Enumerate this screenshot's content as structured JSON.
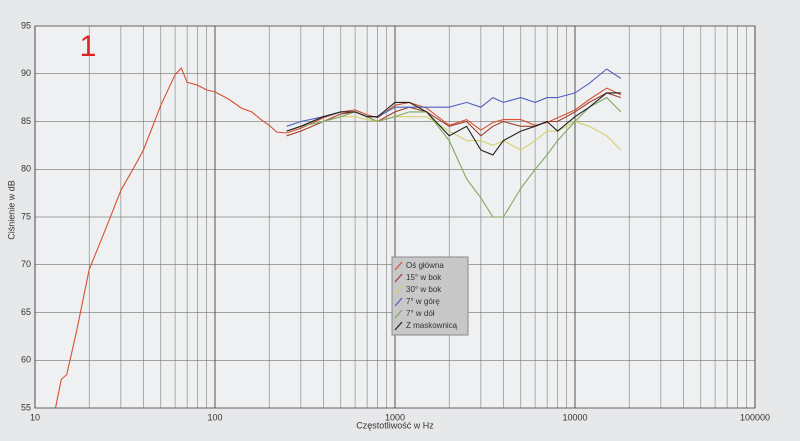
{
  "chart_data": {
    "type": "line",
    "annotation": "1",
    "xlabel": "Częstotliwość w Hz",
    "ylabel": "Ciśnienie w dB",
    "xscale": "log",
    "grid": true,
    "legend": "center",
    "xlim": [
      10,
      100000
    ],
    "xticks": [
      10,
      100,
      1000,
      10000,
      100000
    ],
    "ylim": [
      55,
      95
    ],
    "yticks": [
      55,
      60,
      65,
      70,
      75,
      80,
      85,
      90,
      95
    ],
    "x": [
      13,
      14,
      15,
      17,
      20,
      25,
      30,
      35,
      40,
      50,
      60,
      65,
      70,
      80,
      90,
      100,
      120,
      140,
      160,
      180,
      200,
      220,
      250,
      300,
      400,
      500,
      600,
      700,
      800,
      1000,
      1200,
      1500,
      2000,
      2500,
      3000,
      3500,
      4000,
      5000,
      6000,
      7000,
      8000,
      10000,
      12000,
      15000,
      18000
    ],
    "series": [
      {
        "name": "Oś główna",
        "color": "#d85030",
        "values": [
          55,
          58,
          58.5,
          63,
          69.5,
          74,
          77.8,
          80,
          82,
          86.7,
          89.9,
          90.6,
          89.1,
          88.8,
          88.3,
          88.1,
          87.3,
          86.4,
          86,
          85.2,
          84.6,
          83.9,
          83.8,
          84.3,
          85.4,
          86,
          86.2,
          85.7,
          85.4,
          86.7,
          87,
          86.4,
          84.6,
          85.2,
          84.1,
          84.9,
          85.2,
          85.2,
          84.6,
          84.9,
          85.4,
          86.2,
          87.3,
          88.5,
          87.8
        ]
      },
      {
        "name": "15° w bok",
        "color": "#a04030",
        "values": [
          null,
          null,
          null,
          null,
          null,
          null,
          null,
          null,
          null,
          null,
          null,
          null,
          null,
          null,
          null,
          null,
          null,
          null,
          null,
          null,
          null,
          null,
          83.5,
          84,
          85,
          85.8,
          86,
          85.5,
          85,
          86,
          86.5,
          86,
          84.5,
          85,
          83.5,
          84.5,
          85,
          84.5,
          84.5,
          85,
          85,
          86,
          87,
          88,
          87.5
        ]
      },
      {
        "name": "30° w bok",
        "color": "#d8d070",
        "values": [
          null,
          null,
          null,
          null,
          null,
          null,
          null,
          null,
          null,
          null,
          null,
          null,
          null,
          null,
          null,
          null,
          null,
          null,
          null,
          null,
          null,
          null,
          84,
          84.5,
          85,
          85.5,
          85.5,
          85.2,
          85,
          85.5,
          85.5,
          85.5,
          84,
          83,
          83,
          82.5,
          83,
          82,
          83,
          84,
          84,
          85,
          84.5,
          83.5,
          82
        ]
      },
      {
        "name": "7° w górę",
        "color": "#5060c0",
        "values": [
          null,
          null,
          null,
          null,
          null,
          null,
          null,
          null,
          null,
          null,
          null,
          null,
          null,
          null,
          null,
          null,
          null,
          null,
          null,
          null,
          null,
          null,
          84.5,
          85,
          85.5,
          86,
          86,
          85.5,
          85.5,
          86.5,
          86.5,
          86.5,
          86.5,
          87,
          86.5,
          87.5,
          87,
          87.5,
          87,
          87.5,
          87.5,
          88,
          89,
          90.5,
          89.5
        ]
      },
      {
        "name": "7° w dół",
        "color": "#80a860",
        "values": [
          null,
          null,
          null,
          null,
          null,
          null,
          null,
          null,
          null,
          null,
          null,
          null,
          null,
          null,
          null,
          null,
          null,
          null,
          null,
          null,
          null,
          null,
          84,
          84.5,
          85,
          85.5,
          86,
          85.5,
          85,
          85.5,
          86,
          86,
          83,
          79,
          77,
          75,
          75,
          78,
          80,
          81.5,
          83,
          85,
          86.5,
          87.5,
          86
        ]
      },
      {
        "name": "Z maskownicą",
        "color": "#202020",
        "values": [
          null,
          null,
          null,
          null,
          null,
          null,
          null,
          null,
          null,
          null,
          null,
          null,
          null,
          null,
          null,
          null,
          null,
          null,
          null,
          null,
          null,
          null,
          84,
          84.5,
          85.5,
          86,
          86,
          85.5,
          85.5,
          87,
          87,
          86,
          83.5,
          84.5,
          82,
          81.5,
          83,
          84,
          84.5,
          85,
          84,
          85.5,
          86.5,
          88,
          88
        ]
      }
    ]
  }
}
